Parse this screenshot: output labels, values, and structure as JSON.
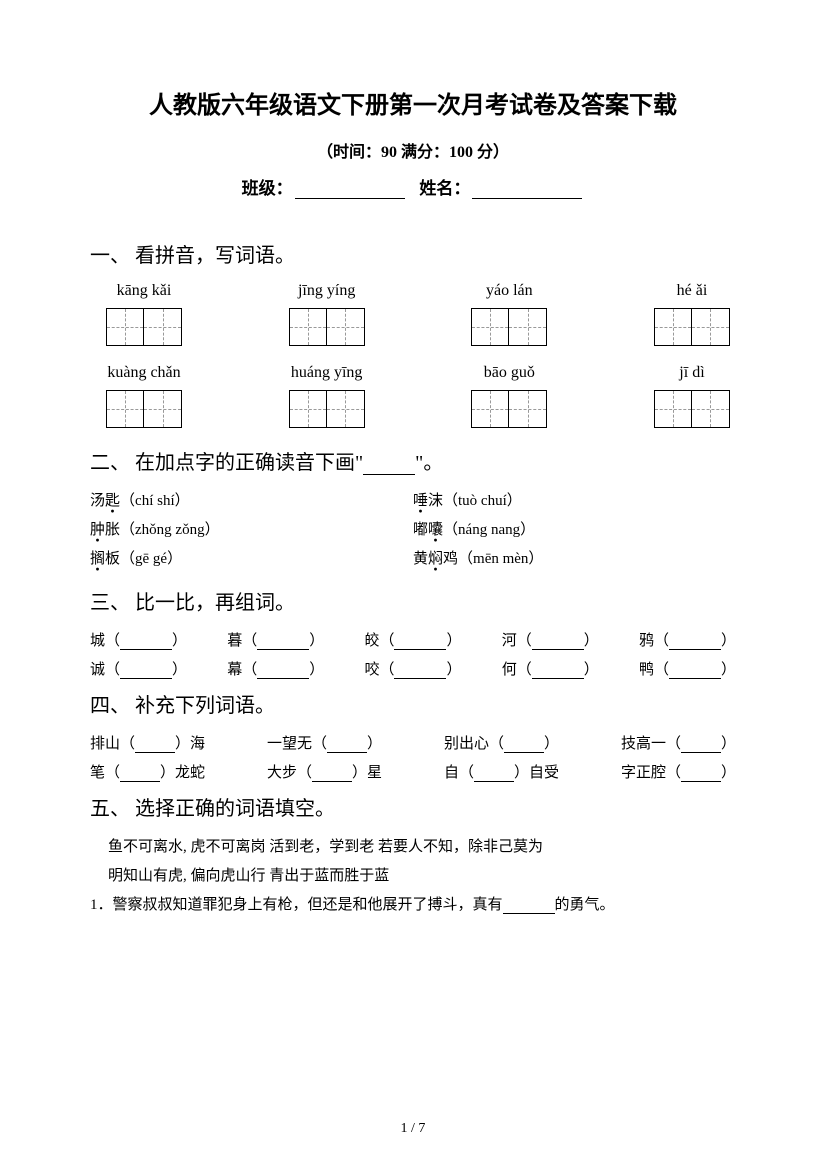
{
  "title": "人教版六年级语文下册第一次月考试卷及答案下载",
  "subtitle": "（时间：90   满分：100 分）",
  "form": {
    "class_label": "班级：",
    "name_label": "姓名："
  },
  "s1": {
    "head": "一、 看拼音，写词语。",
    "row1": [
      "kāng kǎi",
      "jīng yíng",
      "yáo lán",
      "hé ǎi"
    ],
    "row2": [
      "kuàng chǎn",
      "huáng yīng",
      "bāo guǒ",
      "jī dì"
    ]
  },
  "s2": {
    "head_pre": "二、 在加点字的正确读音下画\"",
    "head_post": "\"。",
    "items": [
      {
        "w": "汤匙",
        "dot": 1,
        "py": "（chí   shí）"
      },
      {
        "w": "唾沫",
        "dot": 0,
        "py": "（tuò   chuí）"
      },
      {
        "w": "肿胀",
        "dot": 0,
        "py": "（zhǒng   zǒng）"
      },
      {
        "w": "嘟囔",
        "dot": 1,
        "py": "（náng   nang）"
      },
      {
        "w": "搁板",
        "dot": 0,
        "py": "（gē   gé）"
      },
      {
        "w": "黄焖鸡",
        "dot": 1,
        "py": "（mēn   mèn）"
      }
    ]
  },
  "s3": {
    "head": "三、 比一比，再组词。",
    "row1": [
      "城",
      "暮",
      "皎",
      "河",
      "鸦"
    ],
    "row2": [
      "诚",
      "幕",
      "咬",
      "何",
      "鸭"
    ]
  },
  "s4": {
    "head": "四、 补充下列词语。",
    "row1": [
      {
        "a": "排山（",
        "b": "）海"
      },
      {
        "a": "一望无（",
        "b": "）"
      },
      {
        "a": "别出心（",
        "b": "）"
      },
      {
        "a": "技高一（",
        "b": "）"
      }
    ],
    "row2": [
      {
        "a": "笔（",
        "b": "）龙蛇"
      },
      {
        "a": "大步（",
        "b": "）星"
      },
      {
        "a": "自（",
        "b": "）自受"
      },
      {
        "a": "字正腔（",
        "b": "）"
      }
    ]
  },
  "s5": {
    "head": "五、 选择正确的词语填空。",
    "bank1": "鱼不可离水, 虎不可离岗      活到老，学到老      若要人不知，除非己莫为",
    "bank2": "明知山有虎, 偏向虎山行       青出于蓝而胜于蓝",
    "q1a": "1．警察叔叔知道罪犯身上有枪，但还是和他展开了搏斗，真有",
    "q1b": "的勇气。"
  },
  "footer": "1 / 7"
}
